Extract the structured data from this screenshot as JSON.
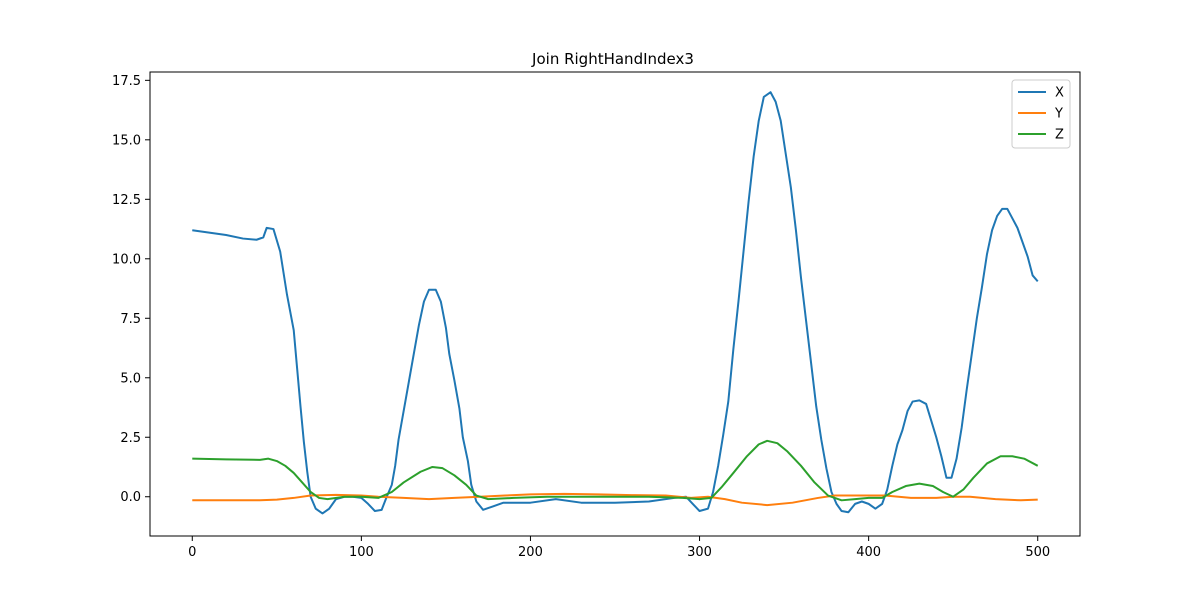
{
  "chart_data": {
    "type": "line",
    "title": "Join RightHandIndex3",
    "xlabel": "",
    "ylabel": "",
    "xlim": [
      -25,
      525
    ],
    "ylim": [
      -1.65,
      17.85
    ],
    "x_ticks": [
      0,
      100,
      200,
      300,
      400,
      500
    ],
    "x_tick_labels": [
      "0",
      "100",
      "200",
      "300",
      "400",
      "500"
    ],
    "y_ticks": [
      0,
      2.5,
      5,
      7.5,
      10,
      12.5,
      15,
      17.5
    ],
    "y_tick_labels": [
      "0.0",
      "2.5",
      "5.0",
      "7.5",
      "10.0",
      "12.5",
      "15.0",
      "17.5"
    ],
    "grid": false,
    "legend_position": "top-right",
    "series": [
      {
        "name": "X",
        "color": "#1f77b4",
        "points": [
          [
            0,
            11.2
          ],
          [
            10,
            11.1
          ],
          [
            20,
            11.0
          ],
          [
            30,
            10.85
          ],
          [
            38,
            10.8
          ],
          [
            42,
            10.9
          ],
          [
            44,
            11.3
          ],
          [
            48,
            11.25
          ],
          [
            52,
            10.3
          ],
          [
            56,
            8.5
          ],
          [
            60,
            7.0
          ],
          [
            62,
            5.4
          ],
          [
            64,
            3.8
          ],
          [
            66,
            2.3
          ],
          [
            68,
            1.05
          ],
          [
            70,
            0.0
          ],
          [
            73,
            -0.5
          ],
          [
            77,
            -0.7
          ],
          [
            81,
            -0.5
          ],
          [
            85,
            -0.1
          ],
          [
            90,
            0.0
          ],
          [
            95,
            0.0
          ],
          [
            100,
            -0.05
          ],
          [
            104,
            -0.3
          ],
          [
            108,
            -0.6
          ],
          [
            112,
            -0.55
          ],
          [
            115,
            0.0
          ],
          [
            118,
            0.5
          ],
          [
            120,
            1.3
          ],
          [
            122,
            2.4
          ],
          [
            125,
            3.6
          ],
          [
            128,
            4.8
          ],
          [
            131,
            6.0
          ],
          [
            134,
            7.2
          ],
          [
            137,
            8.2
          ],
          [
            140,
            8.7
          ],
          [
            144,
            8.7
          ],
          [
            147,
            8.2
          ],
          [
            150,
            7.1
          ],
          [
            152,
            6.0
          ],
          [
            155,
            4.9
          ],
          [
            158,
            3.7
          ],
          [
            160,
            2.5
          ],
          [
            163,
            1.5
          ],
          [
            165,
            0.5
          ],
          [
            168,
            -0.2
          ],
          [
            172,
            -0.55
          ],
          [
            178,
            -0.4
          ],
          [
            184,
            -0.25
          ],
          [
            200,
            -0.25
          ],
          [
            215,
            -0.1
          ],
          [
            230,
            -0.25
          ],
          [
            250,
            -0.25
          ],
          [
            270,
            -0.2
          ],
          [
            285,
            -0.05
          ],
          [
            292,
            0.0
          ],
          [
            296,
            -0.3
          ],
          [
            300,
            -0.6
          ],
          [
            305,
            -0.5
          ],
          [
            308,
            0.2
          ],
          [
            311,
            1.3
          ],
          [
            314,
            2.6
          ],
          [
            317,
            4.0
          ],
          [
            320,
            6.2
          ],
          [
            323,
            8.2
          ],
          [
            326,
            10.3
          ],
          [
            329,
            12.4
          ],
          [
            332,
            14.3
          ],
          [
            335,
            15.8
          ],
          [
            338,
            16.8
          ],
          [
            342,
            17.0
          ],
          [
            345,
            16.6
          ],
          [
            348,
            15.8
          ],
          [
            351,
            14.4
          ],
          [
            354,
            13.0
          ],
          [
            357,
            11.2
          ],
          [
            360,
            9.2
          ],
          [
            363,
            7.4
          ],
          [
            366,
            5.6
          ],
          [
            369,
            3.8
          ],
          [
            372,
            2.4
          ],
          [
            375,
            1.2
          ],
          [
            378,
            0.2
          ],
          [
            381,
            -0.3
          ],
          [
            384,
            -0.6
          ],
          [
            388,
            -0.65
          ],
          [
            392,
            -0.3
          ],
          [
            396,
            -0.2
          ],
          [
            400,
            -0.3
          ],
          [
            404,
            -0.5
          ],
          [
            408,
            -0.3
          ],
          [
            411,
            0.3
          ],
          [
            414,
            1.3
          ],
          [
            417,
            2.2
          ],
          [
            420,
            2.8
          ],
          [
            423,
            3.6
          ],
          [
            426,
            4.0
          ],
          [
            430,
            4.05
          ],
          [
            434,
            3.9
          ],
          [
            437,
            3.2
          ],
          [
            440,
            2.5
          ],
          [
            443,
            1.7
          ],
          [
            446,
            0.8
          ],
          [
            449,
            0.8
          ],
          [
            452,
            1.6
          ],
          [
            455,
            2.9
          ],
          [
            458,
            4.5
          ],
          [
            461,
            6.0
          ],
          [
            464,
            7.5
          ],
          [
            467,
            8.8
          ],
          [
            470,
            10.2
          ],
          [
            473,
            11.2
          ],
          [
            476,
            11.8
          ],
          [
            479,
            12.1
          ],
          [
            482,
            12.1
          ],
          [
            485,
            11.7
          ],
          [
            488,
            11.3
          ],
          [
            491,
            10.7
          ],
          [
            494,
            10.1
          ],
          [
            497,
            9.3
          ],
          [
            500,
            9.05
          ]
        ]
      },
      {
        "name": "Y",
        "color": "#ff7f0e",
        "points": [
          [
            0,
            -0.15
          ],
          [
            20,
            -0.15
          ],
          [
            40,
            -0.15
          ],
          [
            50,
            -0.12
          ],
          [
            60,
            -0.05
          ],
          [
            70,
            0.05
          ],
          [
            85,
            0.08
          ],
          [
            100,
            0.05
          ],
          [
            110,
            0.0
          ],
          [
            125,
            -0.05
          ],
          [
            140,
            -0.1
          ],
          [
            155,
            -0.05
          ],
          [
            170,
            0.0
          ],
          [
            185,
            0.05
          ],
          [
            200,
            0.1
          ],
          [
            220,
            0.12
          ],
          [
            240,
            0.1
          ],
          [
            260,
            0.07
          ],
          [
            280,
            0.05
          ],
          [
            295,
            -0.05
          ],
          [
            305,
            0.0
          ],
          [
            315,
            -0.1
          ],
          [
            325,
            -0.25
          ],
          [
            340,
            -0.35
          ],
          [
            355,
            -0.25
          ],
          [
            370,
            -0.05
          ],
          [
            380,
            0.05
          ],
          [
            395,
            0.05
          ],
          [
            410,
            0.05
          ],
          [
            425,
            -0.05
          ],
          [
            440,
            -0.05
          ],
          [
            450,
            0.0
          ],
          [
            460,
            0.0
          ],
          [
            475,
            -0.1
          ],
          [
            490,
            -0.15
          ],
          [
            500,
            -0.12
          ]
        ]
      },
      {
        "name": "Z",
        "color": "#2ca02c",
        "points": [
          [
            0,
            1.6
          ],
          [
            20,
            1.57
          ],
          [
            40,
            1.55
          ],
          [
            45,
            1.6
          ],
          [
            50,
            1.5
          ],
          [
            55,
            1.3
          ],
          [
            60,
            1.0
          ],
          [
            65,
            0.6
          ],
          [
            70,
            0.2
          ],
          [
            75,
            -0.05
          ],
          [
            80,
            -0.1
          ],
          [
            90,
            0.0
          ],
          [
            100,
            0.0
          ],
          [
            110,
            -0.05
          ],
          [
            118,
            0.2
          ],
          [
            125,
            0.6
          ],
          [
            135,
            1.05
          ],
          [
            142,
            1.25
          ],
          [
            148,
            1.2
          ],
          [
            155,
            0.9
          ],
          [
            162,
            0.5
          ],
          [
            168,
            0.05
          ],
          [
            175,
            -0.1
          ],
          [
            190,
            -0.05
          ],
          [
            210,
            0.0
          ],
          [
            240,
            0.0
          ],
          [
            270,
            0.0
          ],
          [
            290,
            -0.05
          ],
          [
            300,
            -0.1
          ],
          [
            307,
            -0.05
          ],
          [
            313,
            0.4
          ],
          [
            320,
            1.0
          ],
          [
            328,
            1.7
          ],
          [
            335,
            2.2
          ],
          [
            340,
            2.35
          ],
          [
            346,
            2.25
          ],
          [
            352,
            1.9
          ],
          [
            360,
            1.3
          ],
          [
            368,
            0.6
          ],
          [
            376,
            0.05
          ],
          [
            384,
            -0.15
          ],
          [
            392,
            -0.1
          ],
          [
            400,
            -0.05
          ],
          [
            408,
            -0.05
          ],
          [
            414,
            0.2
          ],
          [
            422,
            0.45
          ],
          [
            430,
            0.55
          ],
          [
            438,
            0.45
          ],
          [
            444,
            0.2
          ],
          [
            450,
            0.0
          ],
          [
            456,
            0.3
          ],
          [
            462,
            0.8
          ],
          [
            470,
            1.4
          ],
          [
            478,
            1.7
          ],
          [
            485,
            1.7
          ],
          [
            492,
            1.6
          ],
          [
            500,
            1.3
          ]
        ]
      }
    ]
  }
}
